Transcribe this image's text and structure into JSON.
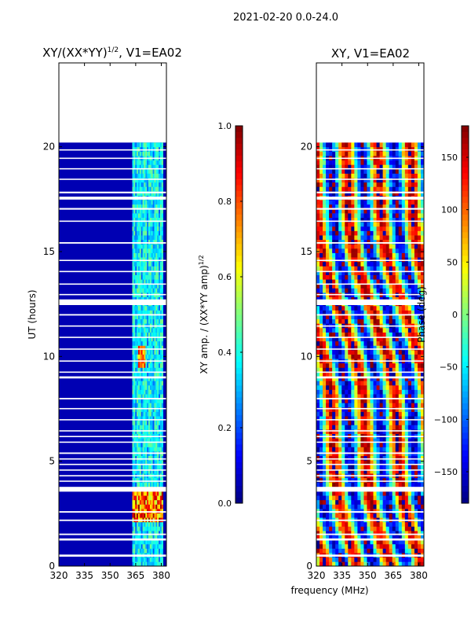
{
  "figure_title": "2021-02-20 0.0-24.0",
  "shared_xlabel": "frequency (MHz)",
  "chart_data": [
    {
      "type": "heatmap",
      "name": "amplitude-panel",
      "title_main": "XY/(XX*YY)",
      "title_sup": "1/2",
      "title_tail": ", V1=EA02",
      "xlim": [
        320,
        383
      ],
      "ylim": [
        0,
        24
      ],
      "xticks": [
        320,
        335,
        350,
        365,
        380
      ],
      "yticks": [
        0,
        5,
        10,
        15,
        20
      ],
      "ylabel": "UT (hours)",
      "data_extent_hours": [
        0,
        20.2
      ],
      "band_mhz": [
        363,
        381
      ],
      "colorbar": {
        "label_main": "XY amp. / (XX*YY amp)",
        "label_sup": "1/2",
        "range": [
          0.0,
          1.0
        ],
        "ticks": [
          "0.0",
          "0.2",
          "0.4",
          "0.6",
          "0.8",
          "1.0"
        ],
        "tick_values": [
          0.0,
          0.2,
          0.4,
          0.6,
          0.8,
          1.0
        ],
        "colormap": "jet"
      }
    },
    {
      "type": "heatmap",
      "name": "phase-panel",
      "title": "XY, V1=EA02",
      "xlim": [
        320,
        383
      ],
      "ylim": [
        0,
        24
      ],
      "xticks": [
        320,
        335,
        350,
        365,
        380
      ],
      "yticks": [
        0,
        5,
        10,
        15,
        20
      ],
      "data_extent_hours": [
        0,
        20.2
      ],
      "colorbar": {
        "label": "Phase (deg)",
        "range": [
          -180,
          180
        ],
        "ticks": [
          "150",
          "100",
          "50",
          "0",
          "−50",
          "−100",
          "−150"
        ],
        "tick_values": [
          150,
          100,
          50,
          0,
          -50,
          -100,
          -150
        ],
        "colormap": "jet"
      }
    }
  ],
  "gap_hours": [
    [
      0.45,
      0.55
    ],
    [
      1.22,
      1.32
    ],
    [
      1.48,
      1.55
    ],
    [
      2.15,
      2.22
    ],
    [
      2.55,
      2.62
    ],
    [
      3.55,
      3.78
    ],
    [
      4.02,
      4.08
    ],
    [
      4.28,
      4.34
    ],
    [
      4.55,
      4.61
    ],
    [
      4.82,
      4.88
    ],
    [
      5.08,
      5.14
    ],
    [
      5.35,
      5.42
    ],
    [
      5.88,
      5.94
    ],
    [
      6.15,
      6.21
    ],
    [
      6.42,
      6.48
    ],
    [
      6.95,
      7.01
    ],
    [
      7.48,
      7.54
    ],
    [
      7.95,
      8.02
    ],
    [
      8.95,
      9.05
    ],
    [
      9.22,
      9.28
    ],
    [
      9.75,
      9.81
    ],
    [
      10.32,
      10.38
    ],
    [
      10.88,
      10.94
    ],
    [
      11.42,
      11.48
    ],
    [
      11.95,
      12.02
    ],
    [
      12.45,
      12.72
    ],
    [
      12.92,
      12.98
    ],
    [
      13.42,
      13.48
    ],
    [
      14.02,
      14.08
    ],
    [
      14.55,
      14.61
    ],
    [
      15.38,
      15.45
    ],
    [
      16.42,
      16.48
    ],
    [
      17.0,
      17.08
    ],
    [
      17.48,
      17.62
    ],
    [
      17.78,
      17.86
    ],
    [
      18.42,
      18.48
    ],
    [
      18.92,
      18.98
    ],
    [
      19.42,
      19.48
    ],
    [
      19.82,
      19.88
    ]
  ]
}
